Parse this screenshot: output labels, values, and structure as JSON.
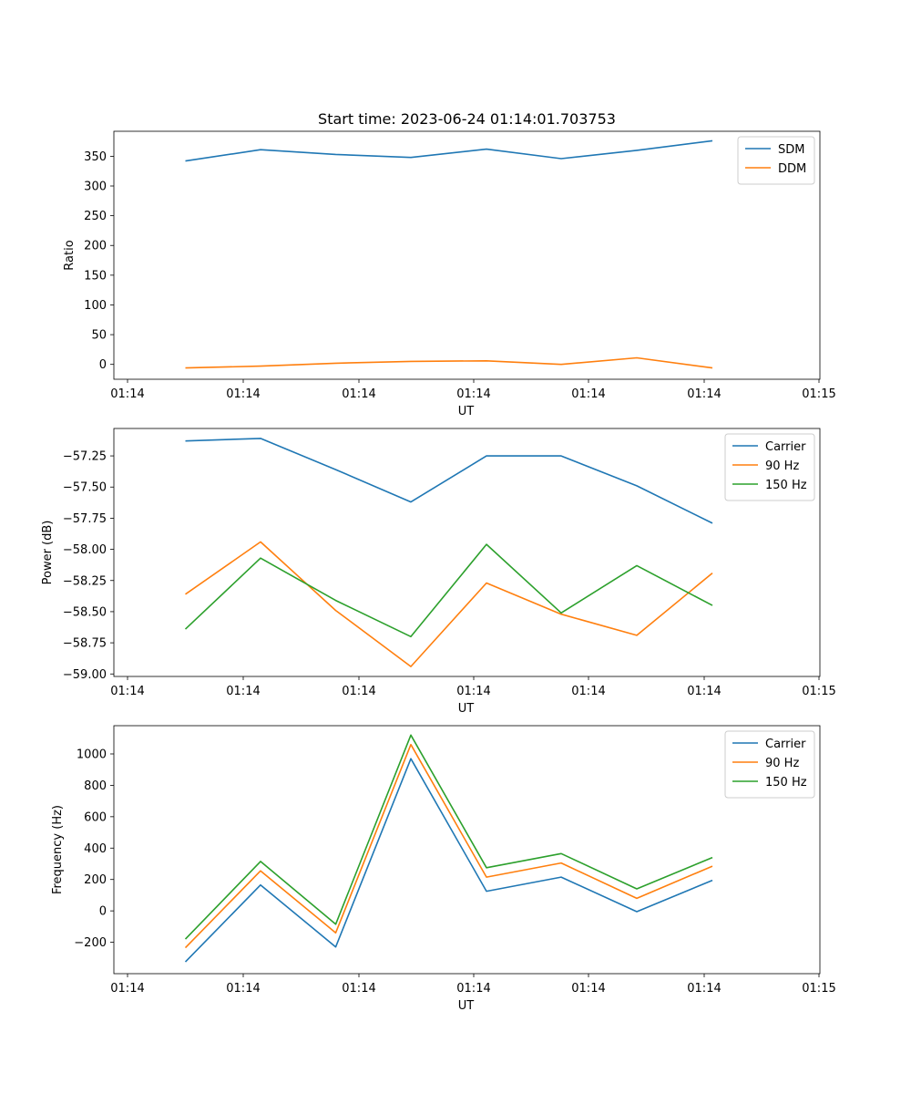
{
  "chart_data": [
    {
      "type": "line",
      "title": "Start time: 2023-06-24 01:14:01.703753",
      "xlabel": "UT",
      "ylabel": "Ratio",
      "xticks": [
        "01:14",
        "01:14",
        "01:14",
        "01:14",
        "01:14",
        "01:14",
        "01:15"
      ],
      "yticks": [
        0,
        50,
        100,
        150,
        200,
        250,
        300,
        350
      ],
      "ylim": [
        -25,
        392
      ],
      "legend": "top-right",
      "series": [
        {
          "name": "SDM",
          "color": "#1f77b4",
          "values": [
            342,
            361,
            353,
            348,
            362,
            346,
            360,
            376
          ]
        },
        {
          "name": "DDM",
          "color": "#ff7f0e",
          "values": [
            -6,
            -3,
            2,
            5,
            6,
            0,
            11,
            -6
          ]
        }
      ]
    },
    {
      "type": "line",
      "title": "",
      "xlabel": "UT",
      "ylabel": "Power (dB)",
      "xticks": [
        "01:14",
        "01:14",
        "01:14",
        "01:14",
        "01:14",
        "01:14",
        "01:15"
      ],
      "yticks": [
        -59.0,
        -58.75,
        -58.5,
        -58.25,
        -58.0,
        -57.75,
        -57.5,
        -57.25
      ],
      "ytick_labels": [
        "−59.00",
        "−58.75",
        "−58.50",
        "−58.25",
        "−58.00",
        "−57.75",
        "−57.50",
        "−57.25"
      ],
      "ylim": [
        -59.02,
        -57.03
      ],
      "legend": "top-right",
      "series": [
        {
          "name": "Carrier",
          "color": "#1f77b4",
          "values": [
            -57.13,
            -57.11,
            -57.36,
            -57.62,
            -57.25,
            -57.25,
            -57.49,
            -57.79
          ]
        },
        {
          "name": "90 Hz",
          "color": "#ff7f0e",
          "values": [
            -58.36,
            -57.94,
            -58.49,
            -58.94,
            -58.27,
            -58.52,
            -58.69,
            -58.19
          ]
        },
        {
          "name": "150 Hz",
          "color": "#2ca02c",
          "values": [
            -58.64,
            -58.07,
            -58.41,
            -58.7,
            -57.96,
            -58.51,
            -58.13,
            -58.45
          ]
        }
      ]
    },
    {
      "type": "line",
      "title": "",
      "xlabel": "UT",
      "ylabel": "Frequency (Hz)",
      "xticks": [
        "01:14",
        "01:14",
        "01:14",
        "01:14",
        "01:14",
        "01:14",
        "01:15"
      ],
      "yticks": [
        -200,
        0,
        200,
        400,
        600,
        800,
        1000
      ],
      "ytick_labels": [
        "−200",
        "0",
        "200",
        "400",
        "600",
        "800",
        "1000"
      ],
      "ylim": [
        -400,
        1180
      ],
      "legend": "top-right",
      "series": [
        {
          "name": "Carrier",
          "color": "#1f77b4",
          "values": [
            -325,
            165,
            -230,
            970,
            125,
            215,
            -5,
            195
          ]
        },
        {
          "name": "90 Hz",
          "color": "#ff7f0e",
          "values": [
            -235,
            255,
            -140,
            1060,
            215,
            305,
            80,
            285
          ]
        },
        {
          "name": "150 Hz",
          "color": "#2ca02c",
          "values": [
            -180,
            315,
            -85,
            1120,
            275,
            365,
            140,
            340
          ]
        }
      ]
    }
  ]
}
